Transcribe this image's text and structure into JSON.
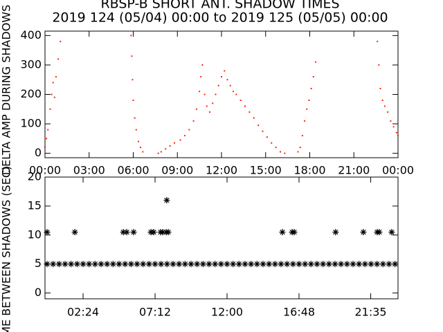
{
  "chart_data": [
    {
      "type": "scatter",
      "title": "RBSP-B SHORT ANT. SHADOW TIMES",
      "subtitle": "2019 124 (05/04) 00:00 to 2019 125 (05/05) 00:00",
      "y_label": "DELTA AMP DURING SHADOWS",
      "color": "#ff2000",
      "x": [
        0,
        0.1,
        0.2,
        0.35,
        0.45,
        0.55,
        0.65,
        0.75,
        0.9,
        1.05,
        5.85,
        5.9,
        5.95,
        6.0,
        6.1,
        6.2,
        6.35,
        6.5,
        6.65,
        7.7,
        7.9,
        8.2,
        8.5,
        8.8,
        9.2,
        9.5,
        9.8,
        10.1,
        10.3,
        10.5,
        10.6,
        10.7,
        10.85,
        11.0,
        11.2,
        11.4,
        11.6,
        11.8,
        12.0,
        12.2,
        12.4,
        12.6,
        12.8,
        13.0,
        13.3,
        13.6,
        13.9,
        14.2,
        14.5,
        14.8,
        15.1,
        15.4,
        15.7,
        16.0,
        16.3,
        17.2,
        17.35,
        17.5,
        17.65,
        17.8,
        17.95,
        18.1,
        18.25,
        18.4,
        22.6,
        22.7,
        22.8,
        22.95,
        23.1,
        23.3,
        23.5,
        23.7,
        23.9,
        24
      ],
      "values": [
        20,
        50,
        80,
        150,
        200,
        240,
        190,
        260,
        320,
        380,
        400,
        330,
        250,
        180,
        120,
        80,
        40,
        20,
        5,
        0,
        5,
        15,
        25,
        35,
        45,
        60,
        80,
        110,
        150,
        210,
        260,
        300,
        200,
        160,
        140,
        170,
        200,
        230,
        260,
        280,
        250,
        230,
        210,
        200,
        180,
        160,
        140,
        120,
        95,
        75,
        55,
        35,
        20,
        5,
        0,
        5,
        20,
        60,
        110,
        150,
        180,
        220,
        260,
        310,
        380,
        300,
        220,
        180,
        160,
        140,
        110,
        90,
        70,
        60
      ],
      "xlim": [
        0,
        24
      ],
      "xticks": [
        {
          "value": 0,
          "label": "00:00"
        },
        {
          "value": 3,
          "label": "03:00"
        },
        {
          "value": 6,
          "label": "06:00"
        },
        {
          "value": 9,
          "label": "09:00"
        },
        {
          "value": 12,
          "label": "12:00"
        },
        {
          "value": 15,
          "label": "15:00"
        },
        {
          "value": 18,
          "label": "18:00"
        },
        {
          "value": 21,
          "label": "21:00"
        },
        {
          "value": 24,
          "label": "00:00"
        }
      ],
      "ylim": [
        -15,
        415
      ],
      "yticks": [
        0,
        100,
        200,
        300,
        400
      ]
    },
    {
      "type": "scatter",
      "y_label": "TIME BETWEEN SHADOWS (SEC)",
      "color": "#000000",
      "series": [
        {
          "x": [
            0,
            0.4,
            0.8,
            1.2,
            1.6,
            2.0,
            2.4,
            2.8,
            3.2,
            3.6,
            4.0,
            4.4,
            4.8,
            5.2,
            5.6,
            6.0,
            6.4,
            6.8,
            7.2,
            7.6,
            8.0,
            8.4,
            8.8,
            9.2,
            9.6,
            10.0,
            10.4,
            10.8,
            11.2,
            11.6,
            12.0,
            12.4,
            12.8,
            13.2,
            13.6,
            14.0,
            14.4,
            14.8,
            15.2,
            15.6,
            16.0,
            16.4,
            16.8,
            17.2,
            17.6,
            18.0,
            18.4,
            18.8,
            19.2,
            19.6,
            20.0,
            20.4,
            20.8,
            21.2,
            21.6,
            22.0,
            22.4,
            22.8,
            23.2
          ],
          "values": [
            5,
            5,
            5,
            5,
            5,
            5,
            5,
            5,
            5,
            5,
            5,
            5,
            5,
            5,
            5,
            5,
            5,
            5,
            5,
            5,
            5,
            5,
            5,
            5,
            5,
            5,
            5,
            5,
            5,
            5,
            5,
            5,
            5,
            5,
            5,
            5,
            5,
            5,
            5,
            5,
            5,
            5,
            5,
            5,
            5,
            5,
            5,
            5,
            5,
            5,
            5,
            5,
            5,
            5,
            5,
            5,
            5,
            5,
            5
          ]
        },
        {
          "x": [
            0,
            1.85,
            5.08,
            5.31,
            5.77,
            6.92,
            7.11,
            7.57,
            7.71,
            7.94,
            7.98,
            8.08,
            15.69,
            16.34,
            16.48,
            19.24,
            21.09,
            22.01,
            22.15,
            22.98
          ],
          "values": [
            10.5,
            10.5,
            10.5,
            10.5,
            10.5,
            10.5,
            10.5,
            10.5,
            10.5,
            10.5,
            16,
            10.5,
            10.5,
            10.5,
            10.5,
            10.5,
            10.5,
            10.5,
            10.5,
            10.5
          ]
        }
      ],
      "xlim": [
        -0.14,
        23.4
      ],
      "xticks": [
        {
          "value": 2.4,
          "label": "02:24"
        },
        {
          "value": 7.2,
          "label": "07:12"
        },
        {
          "value": 12,
          "label": "12:00"
        },
        {
          "value": 16.8,
          "label": "16:48"
        },
        {
          "value": 21.58,
          "label": "21:35"
        }
      ],
      "ylim": [
        -1,
        20
      ],
      "yticks": [
        0,
        5,
        10,
        15,
        20
      ]
    }
  ]
}
